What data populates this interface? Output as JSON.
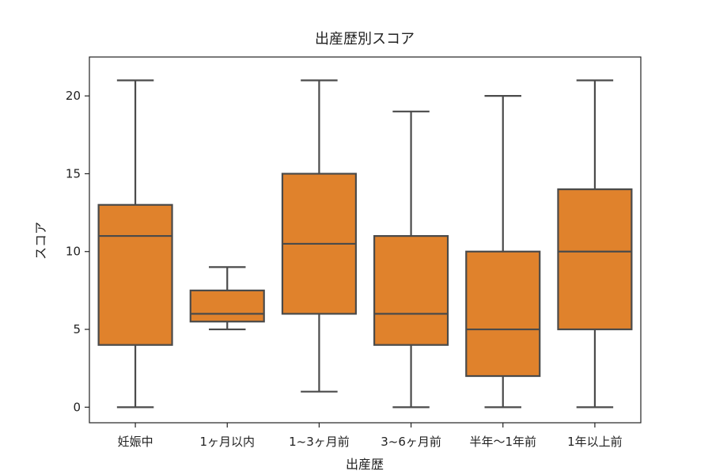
{
  "chart_data": {
    "type": "box",
    "title": "出産歴別スコア",
    "xlabel": "出産歴",
    "ylabel": "スコア",
    "ylim": [
      -1,
      22.5
    ],
    "yticks": [
      0,
      5,
      10,
      15,
      20
    ],
    "box_color": "#E0822C",
    "line_color": "#4a4a4a",
    "categories": [
      "妊娠中",
      "1ヶ月以内",
      "1~3ヶ月前",
      "3~6ヶ月前",
      "半年〜1年前",
      "1年以上前"
    ],
    "boxes": [
      {
        "whisker_low": 0,
        "q1": 4,
        "median": 11,
        "q3": 13,
        "whisker_high": 21
      },
      {
        "whisker_low": 5,
        "q1": 5.5,
        "median": 6,
        "q3": 7.5,
        "whisker_high": 9
      },
      {
        "whisker_low": 1,
        "q1": 6,
        "median": 10.5,
        "q3": 15,
        "whisker_high": 21
      },
      {
        "whisker_low": 0,
        "q1": 4,
        "median": 6,
        "q3": 11,
        "whisker_high": 19
      },
      {
        "whisker_low": 0,
        "q1": 2,
        "median": 5,
        "q3": 10,
        "whisker_high": 20
      },
      {
        "whisker_low": 0,
        "q1": 5,
        "median": 10,
        "q3": 14,
        "whisker_high": 21
      }
    ]
  }
}
